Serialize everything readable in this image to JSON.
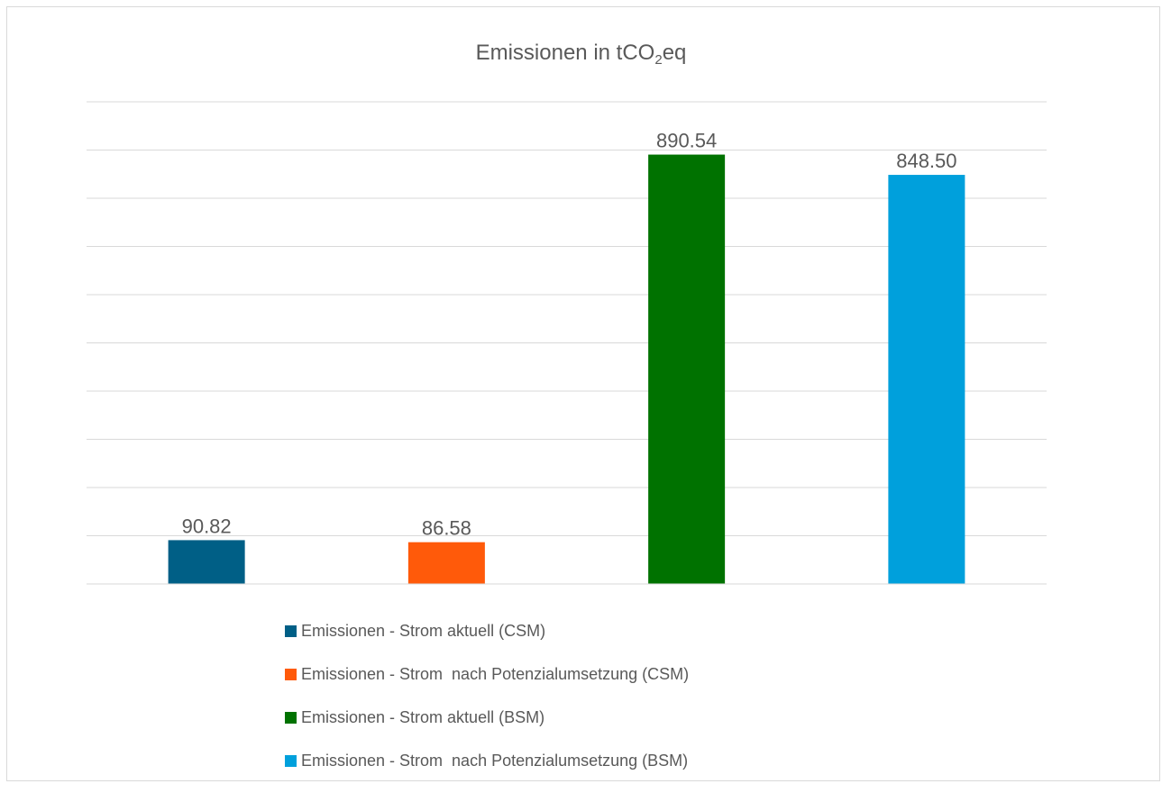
{
  "chart_data": {
    "type": "bar",
    "title_main": "Emissionen in tCO",
    "title_sub": "2",
    "title_suffix": "eq",
    "ylim": [
      0,
      1000
    ],
    "grid": true,
    "legend_position": "bottom",
    "series": [
      {
        "name": "Emissionen - Strom aktuell (CSM)",
        "value": 90.82,
        "label": "90.82",
        "color": "#005f86"
      },
      {
        "name": "Emissionen - Strom  nach Potenzialumsetzung (CSM)",
        "value": 86.58,
        "label": "86.58",
        "color": "#ff5a0a"
      },
      {
        "name": "Emissionen - Strom aktuell (BSM)",
        "value": 890.54,
        "label": "890.54",
        "color": "#007200"
      },
      {
        "name": "Emissionen - Strom  nach Potenzialumsetzung (BSM)",
        "value": 848.5,
        "label": "848.50",
        "color": "#00a0dc"
      }
    ]
  }
}
